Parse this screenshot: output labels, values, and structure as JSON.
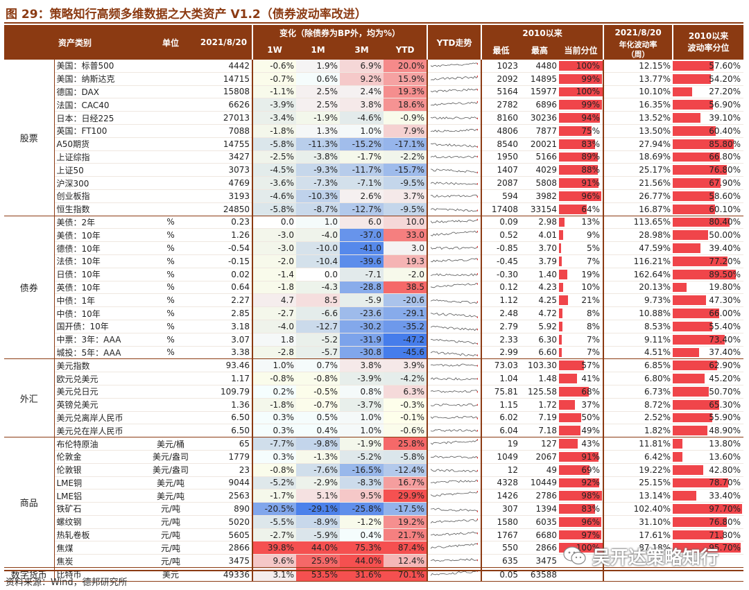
{
  "title": "图 29：策略知行高频多维数据之大类资产 V1.2（债券波动率改进）",
  "source": "资料来源：Wind，德邦研究所",
  "watermark": "吴开达策略知行",
  "colors": {
    "header": "#8b3a12",
    "red": "#f0454a",
    "blue": "#4a7fd0"
  },
  "headers": {
    "asset": "资产类别",
    "unit": "单位",
    "date": "2021/8/20",
    "change_group": "变化（除债券为BP外，均为%）",
    "w1": "1W",
    "m1": "1M",
    "m3": "3M",
    "ytd": "YTD",
    "trend": "YTD走势",
    "since2010": "2010以来",
    "low": "最低",
    "high": "最高",
    "pct": "当前分位",
    "vol_date": "2021/8/20",
    "vol_label": "年化波动率",
    "vol_unit": "（周）",
    "vol_since": "2010以来",
    "vol_pct": "波动率分位"
  },
  "groups": [
    {
      "name": "股票",
      "rows": [
        {
          "name": "美国：标普500",
          "unit": "",
          "value": "4442",
          "w1": "-0.6%",
          "m1": "1.9%",
          "m3": "6.9%",
          "ytd": "20.0%",
          "low": "1023",
          "high": "4480",
          "pct": "100%",
          "vol": "12.15%",
          "vpct": "57.60%"
        },
        {
          "name": "美国：纳斯达克",
          "unit": "",
          "value": "14715",
          "w1": "-0.7%",
          "m1": "0.6%",
          "m3": "9.2%",
          "ytd": "15.9%",
          "low": "2092",
          "high": "14895",
          "pct": "99%",
          "vol": "13.77%",
          "vpct": "54.20%"
        },
        {
          "name": "德国：DAX",
          "unit": "",
          "value": "15808",
          "w1": "-1.1%",
          "m1": "2.5%",
          "m3": "2.4%",
          "ytd": "19.3%",
          "low": "5164",
          "high": "15977",
          "pct": "100%",
          "vol": "10.10%",
          "vpct": "27.20%"
        },
        {
          "name": "法国：CAC40",
          "unit": "",
          "value": "6626",
          "w1": "-3.9%",
          "m1": "2.5%",
          "m3": "3.8%",
          "ytd": "18.6%",
          "low": "2782",
          "high": "6896",
          "pct": "99%",
          "vol": "16.35%",
          "vpct": "56.90%"
        },
        {
          "name": "日本：日经225",
          "unit": "",
          "value": "27013",
          "w1": "-3.4%",
          "m1": "-1.9%",
          "m3": "-4.6%",
          "ytd": "-0.9%",
          "low": "8160",
          "high": "30236",
          "pct": "94%",
          "vol": "13.52%",
          "vpct": "39.10%"
        },
        {
          "name": "英国：FT100",
          "unit": "",
          "value": "7088",
          "w1": "-1.8%",
          "m1": "1.3%",
          "m3": "1.0%",
          "ytd": "7.9%",
          "low": "4806",
          "high": "7877",
          "pct": "75%",
          "vol": "13.50%",
          "vpct": "60.40%"
        },
        {
          "name": "A50期货",
          "unit": "",
          "value": "14755",
          "w1": "-5.8%",
          "m1": "-11.3%",
          "m3": "-15.2%",
          "ytd": "-17.1%",
          "low": "8540",
          "high": "20021",
          "pct": "83%",
          "vol": "27.94%",
          "vpct": "85.80%"
        },
        {
          "name": "上证综指",
          "unit": "",
          "value": "3427",
          "w1": "-2.5%",
          "m1": "-3.8%",
          "m3": "-1.7%",
          "ytd": "-2.2%",
          "low": "1950",
          "high": "5166",
          "pct": "89%",
          "vol": "18.69%",
          "vpct": "66.80%"
        },
        {
          "name": "上证50",
          "unit": "",
          "value": "3073",
          "w1": "-4.5%",
          "m1": "-9.3%",
          "m3": "-11.7%",
          "ytd": "-15.7%",
          "low": "1407",
          "high": "4029",
          "pct": "88%",
          "vol": "25.17%",
          "vpct": "76.80%"
        },
        {
          "name": "沪深300",
          "unit": "",
          "value": "4769",
          "w1": "-3.6%",
          "m1": "-7.3%",
          "m3": "-7.1%",
          "ytd": "-9.5%",
          "low": "2087",
          "high": "5808",
          "pct": "91%",
          "vol": "21.56%",
          "vpct": "67.90%"
        },
        {
          "name": "创业板指",
          "unit": "",
          "value": "3193",
          "w1": "-4.6%",
          "m1": "-10.3%",
          "m3": "2.6%",
          "ytd": "3.7%",
          "low": "594",
          "high": "3982",
          "pct": "96%",
          "vol": "26.77%",
          "vpct": "58.60%"
        },
        {
          "name": "恒生指数",
          "unit": "",
          "value": "24850",
          "w1": "-5.8%",
          "m1": "-8.7%",
          "m3": "-12.7%",
          "ytd": "-9.5%",
          "low": "17408",
          "high": "33154",
          "pct": "64%",
          "vol": "16.87%",
          "vpct": "60.10%"
        }
      ]
    },
    {
      "name": "债券",
      "rows": [
        {
          "name": "美债：2年",
          "unit": "%",
          "value": "0.23",
          "w1": "0.0",
          "m1": "1.0",
          "m3": "6.0",
          "ytd": "10.0",
          "low": "0.09",
          "high": "2.98",
          "pct": "13%",
          "vol": "113.65%",
          "vpct": "80.40%"
        },
        {
          "name": "美债：10年",
          "unit": "%",
          "value": "1.26",
          "w1": "-3.0",
          "m1": "-4.0",
          "m3": "-37.0",
          "ytd": "33.0",
          "low": "0.52",
          "high": "4.01",
          "pct": "9%",
          "vol": "28.98%",
          "vpct": "50.00%"
        },
        {
          "name": "德债：10年",
          "unit": "%",
          "value": "-0.54",
          "w1": "-3.0",
          "m1": "-10.0",
          "m3": "-41.0",
          "ytd": "3.0",
          "low": "-0.85",
          "high": "3.70",
          "pct": "5%",
          "vol": "47.59%",
          "vpct": "39.40%"
        },
        {
          "name": "法债：10年",
          "unit": "%",
          "value": "-0.15",
          "w1": "-2.0",
          "m1": "-10.4",
          "m3": "-39.6",
          "ytd": "19.3",
          "low": "-0.45",
          "high": "3.79",
          "pct": "7%",
          "vol": "116.21%",
          "vpct": "77.20%"
        },
        {
          "name": "日债：10年",
          "unit": "%",
          "value": "0.02",
          "w1": "-1.4",
          "m1": "0.0",
          "m3": "-7.1",
          "ytd": "-2.0",
          "low": "-0.30",
          "high": "1.40",
          "pct": "19%",
          "vol": "162.64%",
          "vpct": "89.50%"
        },
        {
          "name": "英债：10年",
          "unit": "%",
          "value": "0.64",
          "w1": "-1.8",
          "m1": "-4.3",
          "m3": "-28.8",
          "ytd": "38.5",
          "low": "0.12",
          "high": "4.23",
          "pct": "10%",
          "vol": "20.13%",
          "vpct": "19.80%"
        },
        {
          "name": "中债：1年",
          "unit": "%",
          "value": "2.27",
          "w1": "4.7",
          "m1": "8.5",
          "m3": "-5.9",
          "ytd": "-20.6",
          "low": "1.12",
          "high": "4.25",
          "pct": "21%",
          "vol": "9.73%",
          "vpct": "47.30%"
        },
        {
          "name": "中债：10年",
          "unit": "%",
          "value": "2.85",
          "w1": "-2.7",
          "m1": "-6.6",
          "m3": "-23.6",
          "ytd": "-29.1",
          "low": "2.48",
          "high": "4.72",
          "pct": "8%",
          "vol": "10.88%",
          "vpct": "66.00%"
        },
        {
          "name": "国开债：10年",
          "unit": "%",
          "value": "3.18",
          "w1": "-4.0",
          "m1": "-12.7",
          "m3": "-30.2",
          "ytd": "-35.2",
          "low": "2.79",
          "high": "5.92",
          "pct": "8%",
          "vol": "8.53%",
          "vpct": "55.40%"
        },
        {
          "name": "中票：3年：AAA",
          "unit": "%",
          "value": "3.07",
          "w1": "1.8",
          "m1": "-5.2",
          "m3": "-31.9",
          "ytd": "-47.2",
          "low": "2.33",
          "high": "6.30",
          "pct": "7%",
          "vol": "9.11%",
          "vpct": "73.40%"
        },
        {
          "name": "城投：5年：AAA",
          "unit": "%",
          "value": "3.38",
          "w1": "-2.8",
          "m1": "-5.7",
          "m3": "-30.8",
          "ytd": "-45.6",
          "low": "2.99",
          "high": "6.60",
          "pct": "7%",
          "vol": "4.51%",
          "vpct": "37.40%"
        }
      ]
    },
    {
      "name": "外汇",
      "rows": [
        {
          "name": "美元指数",
          "unit": "",
          "value": "93.46",
          "w1": "1.0%",
          "m1": "0.7%",
          "m3": "3.8%",
          "ytd": "3.9%",
          "low": "73.03",
          "high": "103.30",
          "pct": "57%",
          "vol": "6.85%",
          "vpct": "62.90%"
        },
        {
          "name": "欧元兑美元",
          "unit": "",
          "value": "1.17",
          "w1": "-0.8%",
          "m1": "-0.8%",
          "m3": "-3.9%",
          "ytd": "-4.2%",
          "low": "1.04",
          "high": "1.48",
          "pct": "41%",
          "vol": "6.80%",
          "vpct": "45.20%"
        },
        {
          "name": "美元兑日元",
          "unit": "",
          "value": "109.79",
          "w1": "0.2%",
          "m1": "-0.5%",
          "m3": "0.8%",
          "ytd": "6.3%",
          "low": "75.81",
          "high": "125.58",
          "pct": "68%",
          "vol": "6.73%",
          "vpct": "50.70%"
        },
        {
          "name": "英镑兑美元",
          "unit": "",
          "value": "1.36",
          "w1": "-1.8%",
          "m1": "-0.7%",
          "m3": "-3.7%",
          "ytd": "-0.3%",
          "low": "1.15",
          "high": "1.72",
          "pct": "37%",
          "vol": "8.72%",
          "vpct": "65.30%"
        },
        {
          "name": "美元兑离岸人民币",
          "unit": "",
          "value": "6.50",
          "w1": "0.3%",
          "m1": "0.5%",
          "m3": "1.0%",
          "ytd": "-0.1%",
          "low": "6.02",
          "high": "7.19",
          "pct": "50%",
          "vol": "2.52%",
          "vpct": "55.90%"
        },
        {
          "name": "美元兑在岸人民币",
          "unit": "",
          "value": "6.50",
          "w1": "0.3%",
          "m1": "0.4%",
          "m3": "1.0%",
          "ytd": "-0.6%",
          "low": "6.04",
          "high": "7.18",
          "pct": "49%",
          "vol": "1.82%",
          "vpct": "48.90%"
        }
      ]
    },
    {
      "name": "商品",
      "rows": [
        {
          "name": "布伦特原油",
          "unit": "美元/桶",
          "value": "65",
          "w1": "-7.7%",
          "m1": "-9.8%",
          "m3": "-1.9%",
          "ytd": "25.8%",
          "low": "19",
          "high": "127",
          "pct": "43%",
          "vol": "11.81%",
          "vpct": "13.80%"
        },
        {
          "name": "伦敦金",
          "unit": "美元/盎司",
          "value": "1779",
          "w1": "0.3%",
          "m1": "-1.3%",
          "m3": "-5.2%",
          "ytd": "-5.8%",
          "low": "1049",
          "high": "2067",
          "pct": "91%",
          "vol": "6.42%",
          "vpct": "13.60%"
        },
        {
          "name": "伦敦银",
          "unit": "美元/盎司",
          "value": "23",
          "w1": "-0.8%",
          "m1": "-7.6%",
          "m3": "-16.5%",
          "ytd": "-12.4%",
          "low": "12",
          "high": "49",
          "pct": "69%",
          "vol": "19.22%",
          "vpct": "42.80%"
        },
        {
          "name": "LME铜",
          "unit": "美元/吨",
          "value": "9044",
          "w1": "-5.2%",
          "m1": "-2.9%",
          "m3": "-8.3%",
          "ytd": "16.7%",
          "low": "4328",
          "high": "10449",
          "pct": "92%",
          "vol": "25.15%",
          "vpct": "78.70%"
        },
        {
          "name": "LME铝",
          "unit": "美元/吨",
          "value": "2563",
          "w1": "-1.7%",
          "m1": "5.1%",
          "m3": "9.5%",
          "ytd": "29.9%",
          "low": "1426",
          "high": "2786",
          "pct": "98%",
          "vol": "13.14%",
          "vpct": "33.40%"
        },
        {
          "name": "铁矿石",
          "unit": "元/吨",
          "value": "890",
          "w1": "-20.5%",
          "m1": "-29.1%",
          "m3": "-25.8%",
          "ytd": "-17.5%",
          "low": "307",
          "high": "1394",
          "pct": "83%",
          "vol": "102.40%",
          "vpct": "97.70%"
        },
        {
          "name": "螺纹钢",
          "unit": "元/吨",
          "value": "5020",
          "w1": "-5.5%",
          "m1": "-8.9%",
          "m3": "-1.2%",
          "ytd": "19.2%",
          "low": "1580",
          "high": "6035",
          "pct": "96%",
          "vol": "31.10%",
          "vpct": "76.80%"
        },
        {
          "name": "热轧卷板",
          "unit": "元/吨",
          "value": "5605",
          "w1": "-2.7%",
          "m1": "-5.9%",
          "m3": "0.4%",
          "ytd": "21.7%",
          "low": "1767",
          "high": "6680",
          "pct": "97%",
          "vol": "17.61%",
          "vpct": "71.80%"
        },
        {
          "name": "焦煤",
          "unit": "元/吨",
          "value": "2866",
          "w1": "39.8%",
          "m1": "44.0%",
          "m3": "75.3%",
          "ytd": "87.4%",
          "low": "550",
          "high": "2866",
          "pct": "100%",
          "vol": "87.18%",
          "vpct": "95.70%"
        },
        {
          "name": "焦炭",
          "unit": "元/吨",
          "value": "3475",
          "w1": "9.6%",
          "m1": "25.9%",
          "m3": "44.0%",
          "ytd": "12.4%",
          "low": "635",
          "high": "3475",
          "pct": "",
          "vol": "",
          "vpct": ""
        }
      ]
    },
    {
      "name": "数字货币",
      "rows": [
        {
          "name": "比特币",
          "unit": "美元",
          "value": "49336",
          "w1": "3.1%",
          "m1": "53.5%",
          "m3": "31.6%",
          "ytd": "70.1%",
          "low": "0.05",
          "high": "63588",
          "pct": "",
          "vol": "",
          "vpct": ""
        }
      ]
    }
  ]
}
